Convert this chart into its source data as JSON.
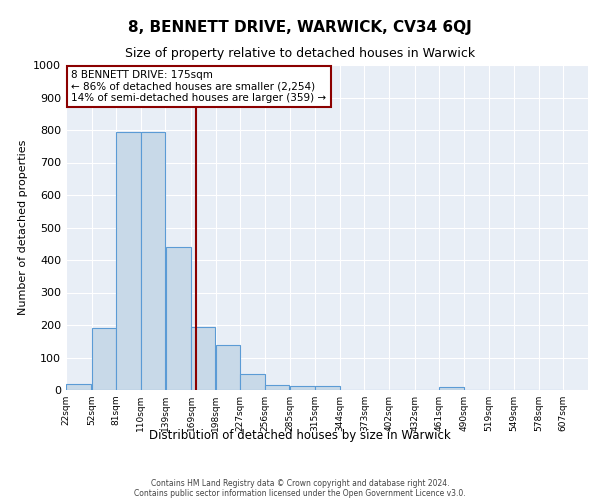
{
  "title": "8, BENNETT DRIVE, WARWICK, CV34 6QJ",
  "subtitle": "Size of property relative to detached houses in Warwick",
  "xlabel": "Distribution of detached houses by size in Warwick",
  "ylabel": "Number of detached properties",
  "bar_left_edges": [
    22,
    52,
    81,
    110,
    139,
    169,
    198,
    227,
    256,
    285,
    315,
    344,
    373,
    402,
    432,
    461,
    490,
    519,
    549,
    578
  ],
  "bar_widths": [
    30,
    29,
    29,
    29,
    30,
    29,
    29,
    29,
    29,
    30,
    29,
    29,
    29,
    30,
    29,
    29,
    29,
    30,
    29,
    29
  ],
  "bar_heights": [
    18,
    192,
    793,
    793,
    440,
    193,
    140,
    50,
    14,
    11,
    11,
    0,
    0,
    0,
    0,
    10,
    0,
    0,
    0,
    0
  ],
  "bar_color": "#c8d9e8",
  "bar_edgecolor": "#5b9bd5",
  "tick_labels": [
    "22sqm",
    "52sqm",
    "81sqm",
    "110sqm",
    "139sqm",
    "169sqm",
    "198sqm",
    "227sqm",
    "256sqm",
    "285sqm",
    "315sqm",
    "344sqm",
    "373sqm",
    "402sqm",
    "432sqm",
    "461sqm",
    "490sqm",
    "519sqm",
    "549sqm",
    "578sqm",
    "607sqm"
  ],
  "ylim": [
    0,
    1000
  ],
  "yticks": [
    0,
    100,
    200,
    300,
    400,
    500,
    600,
    700,
    800,
    900,
    1000
  ],
  "vline_x": 175,
  "vline_color": "#8b0000",
  "annotation_text": "8 BENNETT DRIVE: 175sqm\n← 86% of detached houses are smaller (2,254)\n14% of semi-detached houses are larger (359) →",
  "annotation_box_color": "#ffffff",
  "annotation_box_edgecolor": "#8b0000",
  "background_color": "#e8eef6",
  "grid_color": "#ffffff",
  "footer_line1": "Contains HM Land Registry data © Crown copyright and database right 2024.",
  "footer_line2": "Contains public sector information licensed under the Open Government Licence v3.0."
}
